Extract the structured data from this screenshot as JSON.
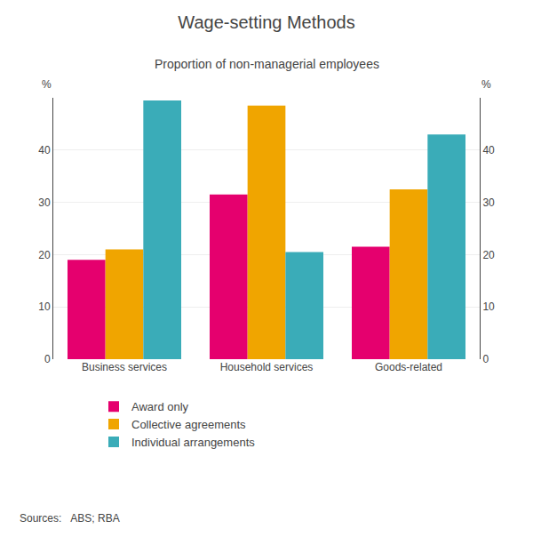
{
  "chart_data": {
    "type": "bar",
    "title": "Wage-setting Methods",
    "subtitle": "Proportion of non-managerial employees",
    "source": "Sources:   ABS; RBA",
    "categories": [
      "Business services",
      "Household services",
      "Goods-related"
    ],
    "series": [
      {
        "name": "Award only",
        "color": "#e5006e",
        "values": [
          19.0,
          31.5,
          21.5
        ]
      },
      {
        "name": "Collective agreements",
        "color": "#f0a500",
        "values": [
          21.0,
          48.5,
          32.5
        ]
      },
      {
        "name": "Individual arrangements",
        "color": "#3aacb8",
        "values": [
          49.5,
          20.5,
          43.0
        ]
      }
    ],
    "ylabel": "%",
    "y2label": "%",
    "ylim": [
      0,
      50
    ],
    "yticks": [
      0,
      10,
      20,
      30,
      40
    ],
    "y2lim": [
      0,
      50
    ],
    "y2ticks": [
      0,
      10,
      20,
      30,
      40
    ],
    "grid": true,
    "legend": "bottom"
  }
}
